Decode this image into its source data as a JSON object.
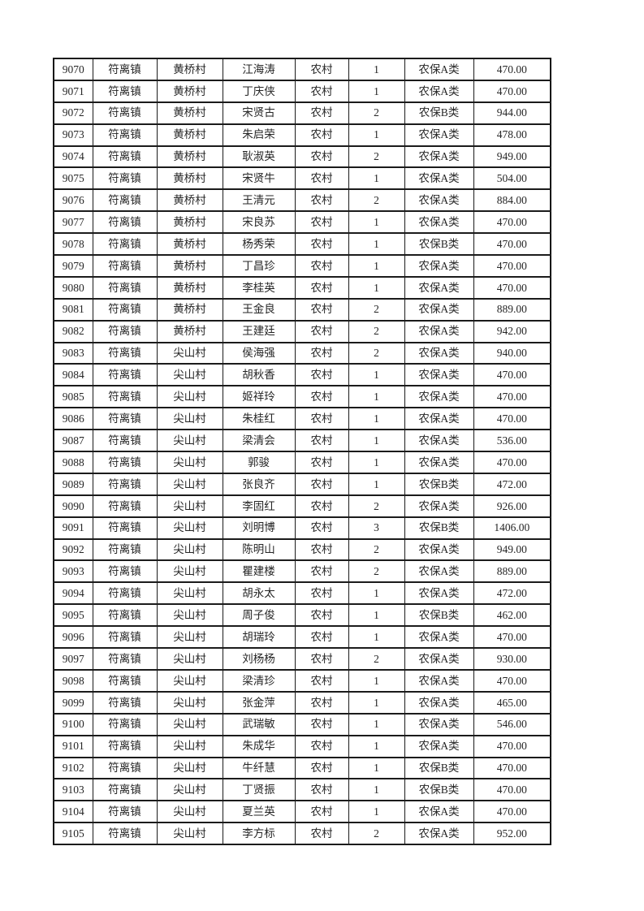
{
  "page": {
    "background_color": "#ffffff",
    "text_color": "#262626",
    "border_color": "#1b1b1b"
  },
  "table": {
    "rows": [
      [
        "9070",
        "符离镇",
        "黄桥村",
        "江海涛",
        "农村",
        "1",
        "农保A类",
        "470.00"
      ],
      [
        "9071",
        "符离镇",
        "黄桥村",
        "丁庆侠",
        "农村",
        "1",
        "农保A类",
        "470.00"
      ],
      [
        "9072",
        "符离镇",
        "黄桥村",
        "宋贤古",
        "农村",
        "2",
        "农保B类",
        "944.00"
      ],
      [
        "9073",
        "符离镇",
        "黄桥村",
        "朱启荣",
        "农村",
        "1",
        "农保A类",
        "478.00"
      ],
      [
        "9074",
        "符离镇",
        "黄桥村",
        "耿淑英",
        "农村",
        "2",
        "农保A类",
        "949.00"
      ],
      [
        "9075",
        "符离镇",
        "黄桥村",
        "宋贤牛",
        "农村",
        "1",
        "农保A类",
        "504.00"
      ],
      [
        "9076",
        "符离镇",
        "黄桥村",
        "王清元",
        "农村",
        "2",
        "农保A类",
        "884.00"
      ],
      [
        "9077",
        "符离镇",
        "黄桥村",
        "宋良苏",
        "农村",
        "1",
        "农保A类",
        "470.00"
      ],
      [
        "9078",
        "符离镇",
        "黄桥村",
        "杨秀荣",
        "农村",
        "1",
        "农保B类",
        "470.00"
      ],
      [
        "9079",
        "符离镇",
        "黄桥村",
        "丁昌珍",
        "农村",
        "1",
        "农保A类",
        "470.00"
      ],
      [
        "9080",
        "符离镇",
        "黄桥村",
        "李桂英",
        "农村",
        "1",
        "农保A类",
        "470.00"
      ],
      [
        "9081",
        "符离镇",
        "黄桥村",
        "王金良",
        "农村",
        "2",
        "农保A类",
        "889.00"
      ],
      [
        "9082",
        "符离镇",
        "黄桥村",
        "王建廷",
        "农村",
        "2",
        "农保A类",
        "942.00"
      ],
      [
        "9083",
        "符离镇",
        "尖山村",
        "侯海强",
        "农村",
        "2",
        "农保A类",
        "940.00"
      ],
      [
        "9084",
        "符离镇",
        "尖山村",
        "胡秋香",
        "农村",
        "1",
        "农保A类",
        "470.00"
      ],
      [
        "9085",
        "符离镇",
        "尖山村",
        "姬祥玲",
        "农村",
        "1",
        "农保A类",
        "470.00"
      ],
      [
        "9086",
        "符离镇",
        "尖山村",
        "朱桂红",
        "农村",
        "1",
        "农保A类",
        "470.00"
      ],
      [
        "9087",
        "符离镇",
        "尖山村",
        "梁清会",
        "农村",
        "1",
        "农保A类",
        "536.00"
      ],
      [
        "9088",
        "符离镇",
        "尖山村",
        "郭骏",
        "农村",
        "1",
        "农保A类",
        "470.00"
      ],
      [
        "9089",
        "符离镇",
        "尖山村",
        "张良齐",
        "农村",
        "1",
        "农保B类",
        "472.00"
      ],
      [
        "9090",
        "符离镇",
        "尖山村",
        "李固红",
        "农村",
        "2",
        "农保A类",
        "926.00"
      ],
      [
        "9091",
        "符离镇",
        "尖山村",
        "刘明博",
        "农村",
        "3",
        "农保B类",
        "1406.00"
      ],
      [
        "9092",
        "符离镇",
        "尖山村",
        "陈明山",
        "农村",
        "2",
        "农保A类",
        "949.00"
      ],
      [
        "9093",
        "符离镇",
        "尖山村",
        "瞿建楼",
        "农村",
        "2",
        "农保A类",
        "889.00"
      ],
      [
        "9094",
        "符离镇",
        "尖山村",
        "胡永太",
        "农村",
        "1",
        "农保A类",
        "472.00"
      ],
      [
        "9095",
        "符离镇",
        "尖山村",
        "周子俊",
        "农村",
        "1",
        "农保B类",
        "462.00"
      ],
      [
        "9096",
        "符离镇",
        "尖山村",
        "胡瑞玲",
        "农村",
        "1",
        "农保A类",
        "470.00"
      ],
      [
        "9097",
        "符离镇",
        "尖山村",
        "刘杨杨",
        "农村",
        "2",
        "农保A类",
        "930.00"
      ],
      [
        "9098",
        "符离镇",
        "尖山村",
        "梁清珍",
        "农村",
        "1",
        "农保A类",
        "470.00"
      ],
      [
        "9099",
        "符离镇",
        "尖山村",
        "张金萍",
        "农村",
        "1",
        "农保A类",
        "465.00"
      ],
      [
        "9100",
        "符离镇",
        "尖山村",
        "武瑞敏",
        "农村",
        "1",
        "农保A类",
        "546.00"
      ],
      [
        "9101",
        "符离镇",
        "尖山村",
        "朱成华",
        "农村",
        "1",
        "农保A类",
        "470.00"
      ],
      [
        "9102",
        "符离镇",
        "尖山村",
        "牛纤慧",
        "农村",
        "1",
        "农保B类",
        "470.00"
      ],
      [
        "9103",
        "符离镇",
        "尖山村",
        "丁贤振",
        "农村",
        "1",
        "农保B类",
        "470.00"
      ],
      [
        "9104",
        "符离镇",
        "尖山村",
        "夏兰英",
        "农村",
        "1",
        "农保A类",
        "470.00"
      ],
      [
        "9105",
        "符离镇",
        "尖山村",
        "李方标",
        "农村",
        "2",
        "农保A类",
        "952.00"
      ]
    ]
  }
}
